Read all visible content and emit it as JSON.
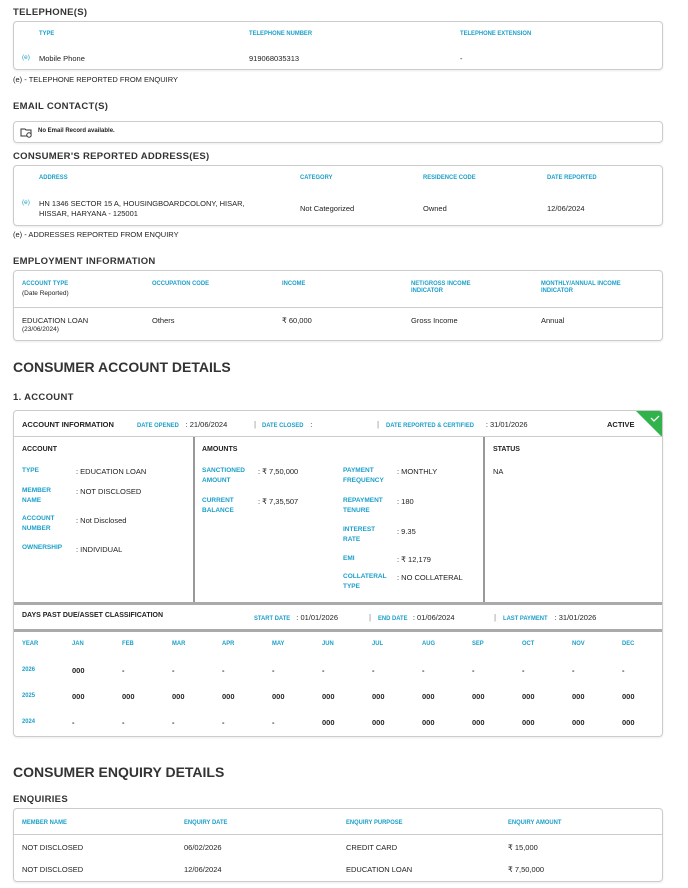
{
  "telephones": {
    "title": "TELEPHONE(S)",
    "headers": [
      "TYPE",
      "TELEPHONE NUMBER",
      "TELEPHONE EXTENSION"
    ],
    "rows": [
      {
        "flag": "(e)",
        "type": "Mobile Phone",
        "number": "919068035313",
        "extension": "-"
      }
    ],
    "note": "(e) - TELEPHONE REPORTED FROM ENQUIRY"
  },
  "email": {
    "title": "EMAIL CONTACT(S)",
    "icon": "folder-icon",
    "empty": "No Email Record available."
  },
  "addresses": {
    "title": "CONSUMER'S REPORTED ADDRESS(ES)",
    "headers": [
      "ADDRESS",
      "CATEGORY",
      "RESIDENCE CODE",
      "DATE REPORTED"
    ],
    "rows": [
      {
        "flag": "(e)",
        "address_line1": "HN 1346 SECTOR 15 A, HOUSINGBOARDCOLONY, HISAR,",
        "address_line2": "HISSAR, HARYANA - 125001",
        "category": "Not Categorized",
        "residence": "Owned",
        "date": "12/06/2024"
      }
    ],
    "note": "(e) - ADDRESSES REPORTED FROM ENQUIRY"
  },
  "employment": {
    "title": "EMPLOYMENT INFORMATION",
    "headers": [
      "ACCOUNT TYPE",
      "OCCUPATION CODE",
      "INCOME",
      "NET/GROSS INCOME INDICATOR",
      "MONTHLY/ANNUAL INCOME INDICATOR"
    ],
    "header_sub": "(Date Reported)",
    "row": {
      "account_type": "EDUCATION LOAN",
      "date": "(23/06/2024)",
      "occupation": "Others",
      "income": "₹ 60,000",
      "net_gross": "Gross Income",
      "monthly_annual": "Annual"
    }
  },
  "account_details": {
    "title": "CONSUMER ACCOUNT DETAILS",
    "account_title": "1. ACCOUNT",
    "info": {
      "label": "ACCOUNT INFORMATION",
      "date_opened_label": "DATE OPENED",
      "date_opened": ": 21/06/2024",
      "date_closed_label": "DATE CLOSED",
      "date_closed": ":",
      "date_reported_label": "DATE REPORTED & CERTIFIED",
      "date_reported": ": 31/01/2026",
      "status": "ACTIVE",
      "status_color": "#2fb34a"
    },
    "account": {
      "title": "ACCOUNT",
      "type_label": "TYPE",
      "type": ": EDUCATION LOAN",
      "member_label": "MEMBER NAME",
      "member": ": NOT DISCLOSED",
      "number_label": "ACCOUNT NUMBER",
      "number": ": Not Disclosed",
      "ownership_label": "OWNERSHIP",
      "ownership": ": INDIVIDUAL"
    },
    "amounts": {
      "title": "AMOUNTS",
      "sanctioned_label": "SANCTIONED AMOUNT",
      "sanctioned": ": ₹ 7,50,000",
      "balance_label": "CURRENT BALANCE",
      "balance": ": ₹ 7,35,507",
      "frequency_label": "PAYMENT FREQUENCY",
      "frequency": ": MONTHLY",
      "tenure_label": "REPAYMENT TENURE",
      "tenure": ": 180",
      "rate_label": "INTEREST RATE",
      "rate": ": 9.35",
      "emi_label": "EMI",
      "emi": ": ₹ 12,179",
      "collateral_label": "COLLATERAL TYPE",
      "collateral": ": NO COLLATERAL"
    },
    "status": {
      "title": "STATUS",
      "value": "NA"
    },
    "dpd": {
      "title": "DAYS PAST DUE/ASSET CLASSIFICATION",
      "start_label": "START DATE",
      "start": ": 01/01/2026",
      "end_label": "END DATE",
      "end": ": 01/06/2024",
      "last_label": "LAST PAYMENT",
      "last": ": 31/01/2026",
      "headers": [
        "YEAR",
        "JAN",
        "FEB",
        "MAR",
        "APR",
        "MAY",
        "JUN",
        "JUL",
        "AUG",
        "SEP",
        "OCT",
        "NOV",
        "DEC"
      ],
      "rows": [
        [
          "2026",
          "000",
          "-",
          "-",
          "-",
          "-",
          "-",
          "-",
          "-",
          "-",
          "-",
          "-",
          "-"
        ],
        [
          "2025",
          "000",
          "000",
          "000",
          "000",
          "000",
          "000",
          "000",
          "000",
          "000",
          "000",
          "000",
          "000"
        ],
        [
          "2024",
          "-",
          "-",
          "-",
          "-",
          "-",
          "000",
          "000",
          "000",
          "000",
          "000",
          "000",
          "000"
        ]
      ]
    }
  },
  "enquiries": {
    "title": "CONSUMER ENQUIRY DETAILS",
    "subtitle": "ENQUIRIES",
    "headers": [
      "MEMBER NAME",
      "ENQUIRY DATE",
      "ENQUIRY PURPOSE",
      "ENQUIRY AMOUNT"
    ],
    "rows": [
      [
        "NOT DISCLOSED",
        "06/02/2026",
        "CREDIT CARD",
        "₹ 15,000"
      ],
      [
        "NOT DISCLOSED",
        "12/06/2024",
        "EDUCATION LOAN",
        "₹ 7,50,000"
      ]
    ]
  }
}
